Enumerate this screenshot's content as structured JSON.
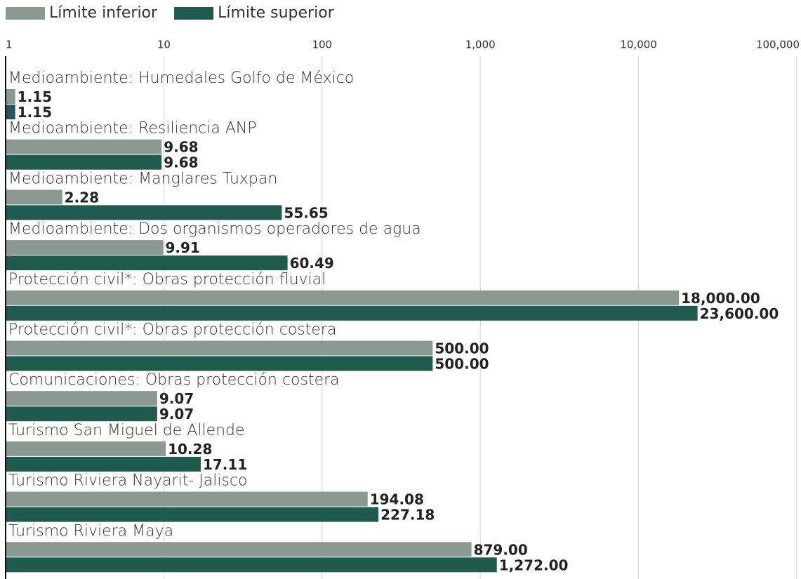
{
  "chart_data": {
    "type": "barh",
    "log_x": true,
    "grid": true,
    "legend": "top-left",
    "categories": [
      "Medioambiente: Humedales Golfo de México",
      "Medioambiente: Resiliencia ANP",
      "Medioambiente: Manglares Tuxpan",
      "Medioambiente:  Dos organismos operadores de agua",
      "Protección civil*: Obras protección fluvial",
      "Protección civil*: Obras protección costera",
      "Comunicaciones: Obras protección costera",
      "Turismo San Miguel de Allende",
      "Turismo Riviera Nayarit- Jalisco",
      "Turismo Riviera Maya"
    ],
    "series": [
      {
        "name": "Límite inferior",
        "color": "#8a9a93",
        "values": [
          1.15,
          9.68,
          2.28,
          9.91,
          18000,
          500,
          9.07,
          10.28,
          194.08,
          879
        ],
        "value_labels": [
          "1.15",
          "9.68",
          "2.28",
          "9.91",
          "18,000.00",
          "500.00",
          "9.07",
          "10.28",
          "194.08",
          "879.00"
        ]
      },
      {
        "name": "Límite superior",
        "color": "#1e5a4e",
        "values": [
          1.15,
          9.68,
          55.65,
          60.49,
          23600,
          500,
          9.07,
          17.11,
          227.18,
          1272
        ],
        "value_labels": [
          "1.15",
          "9.68",
          "55.65",
          "60.49",
          "23,600.00",
          "500.00",
          "9.07",
          "17.11",
          "227.18",
          "1,272.00"
        ]
      }
    ],
    "xlim": [
      1,
      100000
    ],
    "xticks": [
      1,
      10,
      100,
      {
        "value": 1000,
        "label": "1,000"
      },
      {
        "value": 10000,
        "label": "10,000"
      },
      {
        "value": 100000,
        "label": "100,000"
      }
    ]
  }
}
